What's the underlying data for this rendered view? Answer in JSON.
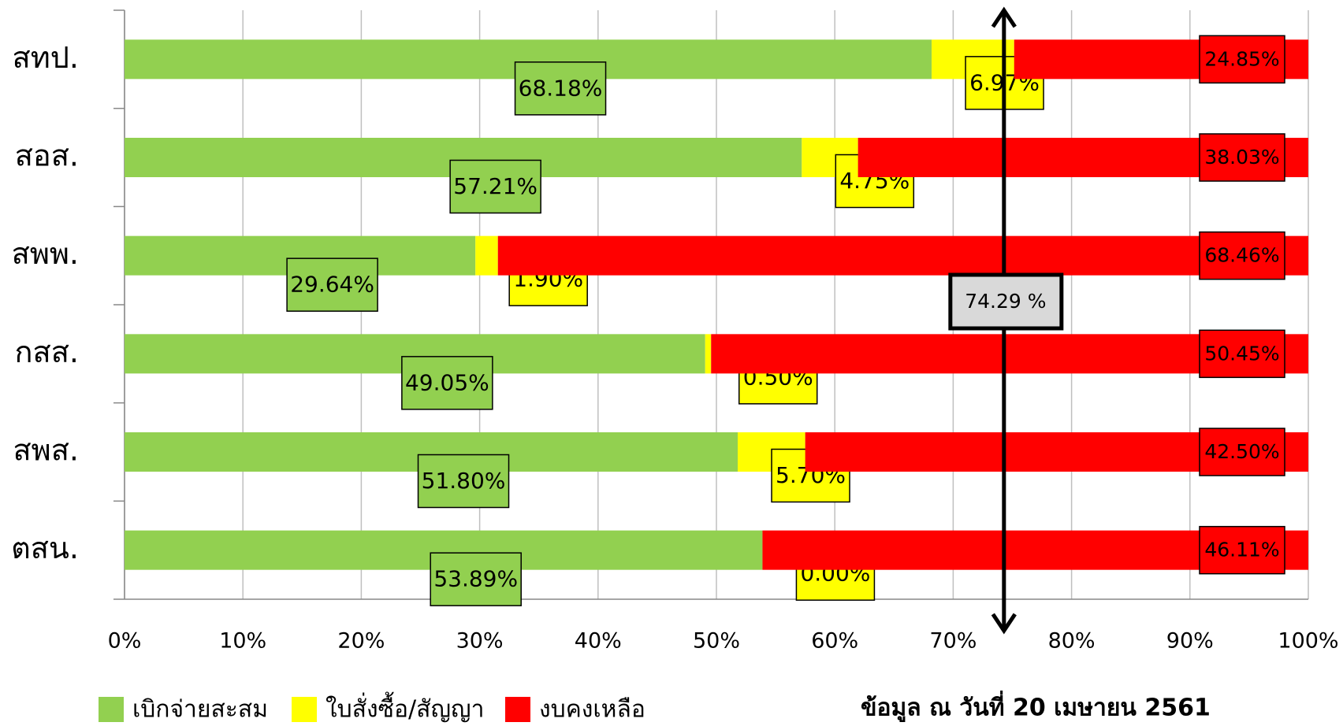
{
  "chart_data": {
    "type": "stacked_bar_horizontal",
    "categories": [
      "สทป.",
      "สอส.",
      "สพพ.",
      "กสส.",
      "สพส.",
      "ตสน."
    ],
    "series": [
      {
        "name": "เบิกจ่ายสะสม",
        "color": "#92d050",
        "values": [
          68.18,
          57.21,
          29.64,
          49.05,
          51.8,
          53.89
        ],
        "value_labels": [
          "68.18%",
          "57.21%",
          "29.64%",
          "49.05%",
          "51.80%",
          "53.89%"
        ]
      },
      {
        "name": "ใบสั่งซื้อ/สัญญา",
        "color": "#ffff00",
        "values": [
          6.97,
          4.75,
          1.9,
          0.5,
          5.7,
          0.0
        ],
        "value_labels": [
          "6.97%",
          "4.75%",
          "1.90%",
          "0.50%",
          "5.70%",
          "0.00%"
        ]
      },
      {
        "name": "งบคงเหลือ",
        "color": "#ff0000",
        "values": [
          24.85,
          38.03,
          68.46,
          50.45,
          42.5,
          46.11
        ],
        "value_labels": [
          "24.85%",
          "38.03%",
          "68.46%",
          "50.45%",
          "42.50%",
          "46.11%"
        ]
      }
    ],
    "xlim": [
      0,
      100
    ],
    "xticks": [
      {
        "value": 0,
        "label": "0%"
      },
      {
        "value": 10,
        "label": "10%"
      },
      {
        "value": 20,
        "label": "20%"
      },
      {
        "value": 30,
        "label": "30%"
      },
      {
        "value": 40,
        "label": "40%"
      },
      {
        "value": 50,
        "label": "50%"
      },
      {
        "value": 60,
        "label": "60%"
      },
      {
        "value": 70,
        "label": "70%"
      },
      {
        "value": 80,
        "label": "80%"
      },
      {
        "value": 90,
        "label": "90%"
      },
      {
        "value": 100,
        "label": "100%"
      }
    ],
    "grid": true,
    "legend": "bottom-left",
    "reference_line": {
      "value": 74.29,
      "label": "74.29 %"
    },
    "annotation": "ข้อมูล ณ วันที่ 20 เมษายน 2561"
  }
}
